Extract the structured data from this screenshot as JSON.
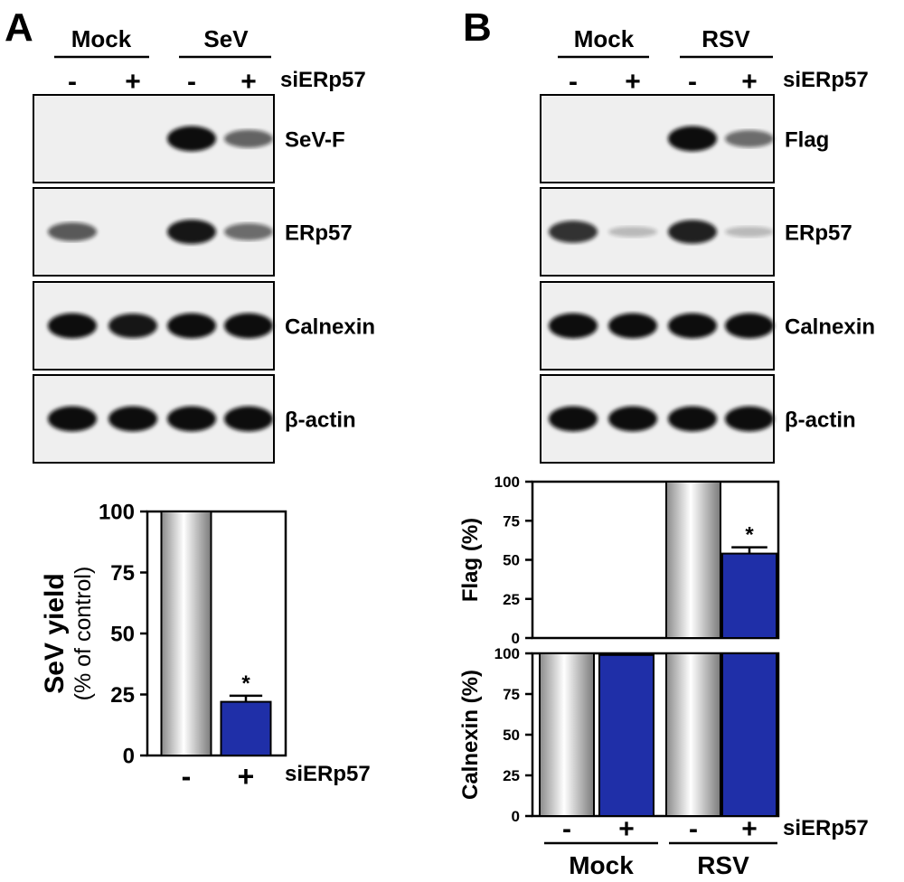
{
  "panels": [
    {
      "id": "A",
      "letter": "A",
      "groups": [
        "Mock",
        "SeV"
      ],
      "lanes": [
        "-",
        "+",
        "-",
        "+"
      ],
      "treatment_label": "siERp57",
      "blots": [
        {
          "label": "SeV-F",
          "intensity": [
            0.0,
            0.0,
            1.0,
            0.55
          ]
        },
        {
          "label": "ERp57",
          "intensity": [
            0.6,
            0.0,
            0.95,
            0.5
          ]
        },
        {
          "label": "Calnexin",
          "intensity": [
            1.0,
            0.95,
            1.0,
            1.0
          ]
        },
        {
          "label": "β-actin",
          "intensity": [
            1.0,
            1.0,
            1.0,
            1.0
          ]
        }
      ]
    },
    {
      "id": "B",
      "letter": "B",
      "groups": [
        "Mock",
        "RSV"
      ],
      "lanes": [
        "-",
        "+",
        "-",
        "+"
      ],
      "treatment_label": "siERp57",
      "blots": [
        {
          "label": "Flag",
          "intensity": [
            0.0,
            0.0,
            1.0,
            0.5
          ]
        },
        {
          "label": "ERp57",
          "intensity": [
            0.8,
            0.1,
            0.9,
            0.1
          ]
        },
        {
          "label": "Calnexin",
          "intensity": [
            1.0,
            1.0,
            1.0,
            1.0
          ]
        },
        {
          "label": "β-actin",
          "intensity": [
            1.0,
            1.0,
            1.0,
            1.0
          ]
        }
      ]
    }
  ],
  "colors": {
    "bar_blue": "#1f2fa8",
    "bar_gray": "#e6e6e6",
    "blot_bg": "#efefef"
  },
  "chart_data": [
    {
      "type": "bar",
      "panel": "A",
      "ylabel": "SeV yield",
      "ylabel_sub": "(% of control)",
      "categories": [
        "-",
        "+"
      ],
      "x_label": "siERp57",
      "values": [
        100,
        22
      ],
      "errors": [
        0,
        2.5
      ],
      "significance": [
        "",
        "*"
      ],
      "ylim": [
        0,
        100
      ],
      "yticks": [
        "0",
        "25",
        "50",
        "75",
        "100"
      ]
    },
    {
      "type": "bar",
      "panel": "B",
      "ylabel": "Flag (%)",
      "categories": [
        "-",
        "+",
        "-",
        "+"
      ],
      "groups": [
        "Mock",
        "RSV"
      ],
      "x_label": "siERp57",
      "values": [
        0,
        0,
        100,
        54
      ],
      "errors": [
        0,
        0,
        0,
        4
      ],
      "significance": [
        "",
        "",
        "",
        "*"
      ],
      "ylim": [
        0,
        100
      ],
      "yticks": [
        "0",
        "25",
        "50",
        "75",
        "100"
      ]
    },
    {
      "type": "bar",
      "panel": "B",
      "ylabel": "Calnexin (%)",
      "categories": [
        "-",
        "+",
        "-",
        "+"
      ],
      "groups": [
        "Mock",
        "RSV"
      ],
      "x_label": "siERp57",
      "values": [
        100,
        99,
        100,
        100
      ],
      "errors": [
        0,
        0,
        0,
        0
      ],
      "significance": [
        "",
        "",
        "",
        ""
      ],
      "ylim": [
        0,
        100
      ],
      "yticks": [
        "0",
        "25",
        "50",
        "75",
        "100"
      ]
    }
  ]
}
